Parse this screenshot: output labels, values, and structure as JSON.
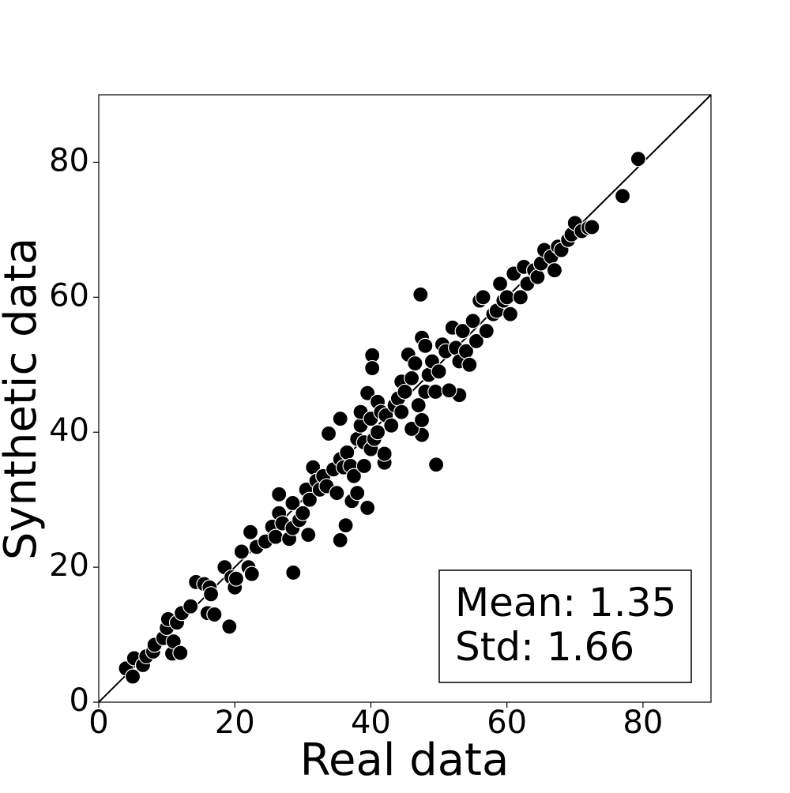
{
  "chart_data": {
    "type": "scatter",
    "xlabel": "Real data",
    "ylabel": "Synthetic data",
    "xlim": [
      0,
      90
    ],
    "ylim": [
      0,
      90
    ],
    "xticks": [
      0,
      20,
      40,
      60,
      80
    ],
    "yticks": [
      0,
      20,
      40,
      60,
      80
    ],
    "color": "#000000",
    "edge_color": "#ffffff",
    "annotations": [
      "Mean: 1.35",
      "Std: 1.66"
    ],
    "x": [
      79.3,
      77,
      47.3,
      49.6,
      28.6,
      19.2,
      35.5,
      40.2,
      53,
      47.5,
      26.5,
      36.3,
      4,
      5,
      5.2,
      6.5,
      7,
      8,
      8.2,
      9.5,
      10,
      10.2,
      10.8,
      11,
      11.5,
      12,
      12.2,
      13.5,
      14.3,
      15.5,
      16,
      16.3,
      16.5,
      17,
      18.5,
      19.5,
      20,
      20.2,
      21,
      22,
      22.3,
      22.5,
      23.2,
      24.5,
      25.5,
      26,
      26.5,
      27,
      28,
      28.5,
      28.5,
      29.5,
      30,
      30.5,
      30.8,
      31,
      31.5,
      32,
      32.5,
      33,
      33.5,
      33.8,
      34.5,
      35,
      35.5,
      35.5,
      36,
      36.5,
      37,
      37.2,
      37.5,
      38,
      38,
      38.5,
      38.5,
      39,
      39,
      39.5,
      39.5,
      40,
      40,
      40.2,
      40.5,
      41,
      41,
      41.5,
      42,
      42,
      42.2,
      43,
      43.5,
      44,
      44.5,
      44.5,
      45,
      45.5,
      46,
      46,
      46.5,
      47,
      47.5,
      47.5,
      48,
      48,
      48.5,
      49,
      49.5,
      50,
      50.5,
      51,
      51.5,
      52,
      52.5,
      53,
      53.5,
      54,
      54.5,
      55,
      55.5,
      56,
      56.5,
      57,
      58,
      58.5,
      59,
      59.5,
      60,
      60.5,
      61,
      62,
      62.5,
      63,
      64,
      64.5,
      65,
      65.5,
      66.5,
      67,
      67.5,
      68,
      69,
      69.5,
      70,
      71,
      72,
      72.5
    ],
    "values": [
      80.5,
      75,
      60.4,
      35.2,
      19.2,
      11.2,
      24,
      51.4,
      45.5,
      39.6,
      30.8,
      26.2,
      5,
      3.8,
      6.5,
      5.5,
      6.8,
      7.5,
      8.5,
      9.5,
      11,
      12.3,
      7.2,
      9,
      11.8,
      7.3,
      13.2,
      14.2,
      17.8,
      17.5,
      13.2,
      17,
      16,
      13,
      20,
      18.5,
      17,
      18.3,
      22.3,
      20,
      25.2,
      19,
      23,
      23.8,
      26,
      24.5,
      28,
      26.5,
      24.2,
      25.8,
      29.5,
      27,
      28,
      31.5,
      24.8,
      30,
      34.8,
      32.8,
      31.5,
      33.5,
      32,
      39.8,
      34.5,
      31,
      42,
      36,
      34.8,
      37,
      35,
      29.8,
      33.5,
      31,
      39,
      41,
      43,
      38.5,
      35,
      28.8,
      45.8,
      37.5,
      42,
      49.5,
      39,
      40,
      44.5,
      43,
      35.5,
      36.8,
      42.5,
      41,
      44,
      45,
      43,
      47.5,
      46,
      51.5,
      40.5,
      48,
      50.2,
      44,
      54,
      41.8,
      52.8,
      46,
      48.5,
      50.5,
      46,
      49,
      53,
      52,
      46.2,
      55.5,
      52.5,
      50.5,
      55,
      52,
      50,
      56.5,
      53.5,
      59.5,
      60,
      55,
      57.5,
      58,
      62,
      59.5,
      60,
      57.5,
      63.5,
      60,
      64.5,
      62,
      64,
      63,
      65,
      67,
      66,
      64,
      67.5,
      67,
      68.5,
      69.3,
      71,
      69.8,
      70.3,
      70.4
    ]
  }
}
